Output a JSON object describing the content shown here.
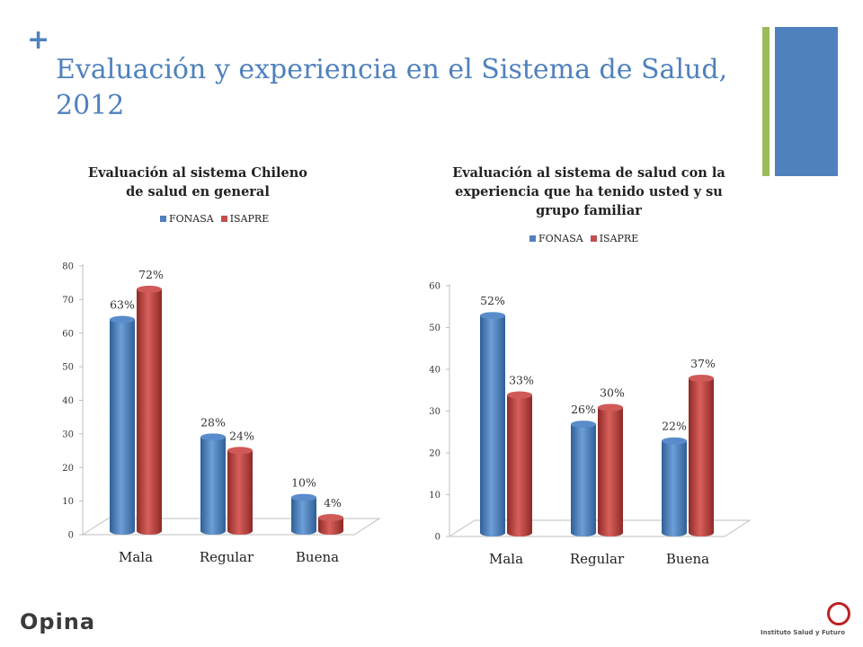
{
  "slide": {
    "plus": "+",
    "title": "Evaluación y experiencia en el Sistema de Salud, 2012"
  },
  "colors": {
    "accent": "#4f81bd",
    "green": "#9bbb59",
    "fonasa": "#4f81bd",
    "isapre": "#c0504d"
  },
  "footer": {
    "left_logo": "Opina",
    "right_logo": "Instituto Salud y Futuro"
  },
  "chart_data": [
    {
      "type": "bar",
      "title": "Evaluación al sistema Chileno de salud en general",
      "categories": [
        "Mala",
        "Regular",
        "Buena"
      ],
      "series": [
        {
          "name": "FONASA",
          "values": [
            63,
            28,
            10
          ],
          "labels": [
            "63%",
            "28%",
            "10%"
          ]
        },
        {
          "name": "ISAPRE",
          "values": [
            72,
            24,
            4
          ],
          "labels": [
            "72%",
            "24%",
            "4%"
          ]
        }
      ],
      "yticks": [
        "0",
        "10",
        "20",
        "30",
        "40",
        "50",
        "60",
        "70",
        "80"
      ],
      "ylim": [
        0,
        80
      ]
    },
    {
      "type": "bar",
      "title": "Evaluación al sistema de salud con la experiencia que ha tenido usted y su grupo familiar",
      "categories": [
        "Mala",
        "Regular",
        "Buena"
      ],
      "series": [
        {
          "name": "FONASA",
          "values": [
            52,
            26,
            22
          ],
          "labels": [
            "52%",
            "26%",
            "22%"
          ]
        },
        {
          "name": "ISAPRE",
          "values": [
            33,
            30,
            37
          ],
          "labels": [
            "33%",
            "30%",
            "37%"
          ]
        }
      ],
      "yticks": [
        "0",
        "10",
        "20",
        "30",
        "40",
        "50",
        "60"
      ],
      "ylim": [
        0,
        60
      ]
    }
  ]
}
